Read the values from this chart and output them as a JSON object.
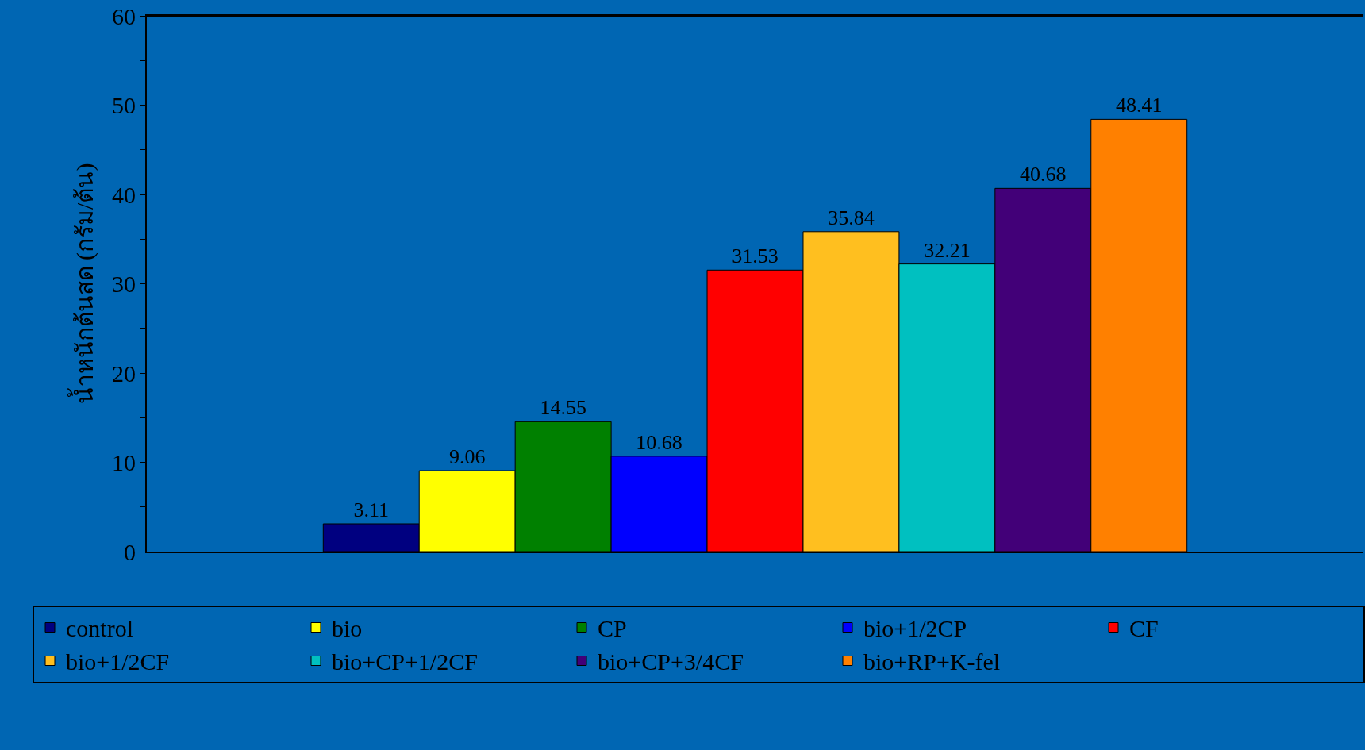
{
  "chart_data": {
    "type": "bar",
    "ylabel": "น้ำหนักต้นสด (กรัม/ต้น)",
    "categories": [
      null
    ],
    "series": [
      {
        "name": "control",
        "color": "#000080",
        "values": [
          3.11
        ]
      },
      {
        "name": "bio",
        "color": "#ffff00",
        "values": [
          9.06
        ]
      },
      {
        "name": "CP",
        "color": "#008000",
        "values": [
          14.55
        ]
      },
      {
        "name": "bio+1/2CP",
        "color": "#0000ff",
        "values": [
          10.68
        ]
      },
      {
        "name": "CF",
        "color": "#ff0000",
        "values": [
          31.53
        ]
      },
      {
        "name": "bio+1/2CF",
        "color": "#ffbf1f",
        "values": [
          35.84
        ]
      },
      {
        "name": "bio+CP+1/2CF",
        "color": "#00c0c0",
        "values": [
          32.21
        ]
      },
      {
        "name": "bio+CP+3/4CF",
        "color": "#420078",
        "values": [
          40.68
        ]
      },
      {
        "name": "bio+RP+K-fel",
        "color": "#ff8000",
        "values": [
          48.41
        ]
      }
    ],
    "ylim": [
      0,
      60
    ],
    "yticks": [
      0,
      {
        "value": 5,
        "label": null
      },
      10,
      {
        "value": 15,
        "label": null
      },
      20,
      {
        "value": 25,
        "label": null
      },
      30,
      {
        "value": 35,
        "label": null
      },
      40,
      {
        "value": 45,
        "label": null
      },
      50,
      {
        "value": 55,
        "label": null
      },
      60
    ],
    "data_labels": true,
    "legend": "bottom",
    "grid": false
  }
}
